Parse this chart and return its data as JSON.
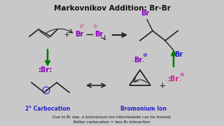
{
  "title": "Markovnikov Addition: Br-Br",
  "title_fontsize": 7.5,
  "bg_color": "#c8c8c8",
  "panel_color": "#e8e8e8",
  "text_black": "#111111",
  "text_blue": "#2222cc",
  "text_purple": "#8800bb",
  "text_magenta": "#cc2288",
  "text_green": "#007700",
  "arrow_green": "#007700",
  "footnote1": "Due to Br size, a bromonium ion intermediate can be formed.",
  "footnote2": "Better carbocation = less Br interaction",
  "label_carbocation": "2° Carbocation",
  "label_bromonium": "Bromonium Ion"
}
